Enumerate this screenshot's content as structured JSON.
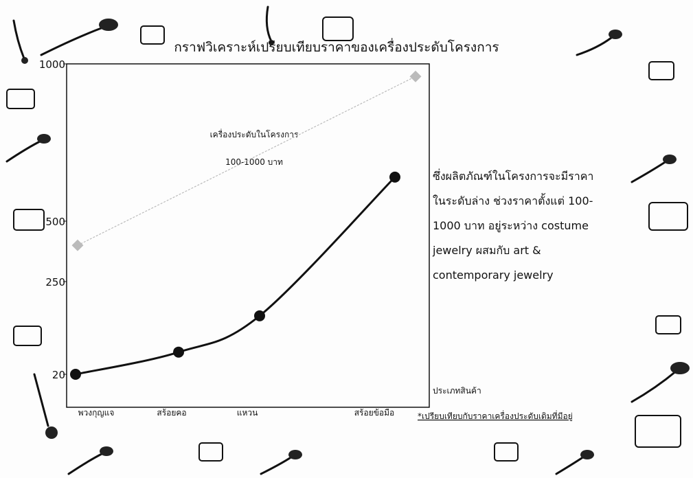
{
  "chart_data": {
    "type": "line",
    "title": "กราฟวิเคราะห์เปรียบเทียบราคาของเครื่องประดับโครงการ",
    "categories": [
      "พวงกุญแจ",
      "สร้อยคอ",
      "แหวน",
      "สร้อยข้อมือ"
    ],
    "series": [
      {
        "color": "#111111",
        "values": [
          20,
          75,
          165,
          640
        ]
      }
    ],
    "range": {
      "color": "#bbbbbb",
      "values": [
        400,
        960
      ]
    },
    "ylim": [
      20,
      1000
    ],
    "yticks": [
      20,
      250,
      500,
      1000
    ],
    "x_label": "ประเภทสินค้า",
    "annotation": [
      "เครื่องประดับในโครงการ",
      "100-1000 บาท"
    ],
    "description": [
      "ซึ่งผลิตภัณฑ์ในโครงการจะมีราคา",
      "ในระดับล่าง ช่วงราคาตั้งแต่ 100-",
      "1000 บาท อยู่ระหว่าง costume",
      "jewelry ผสมกับ art &",
      "contemporary jewelry"
    ],
    "footnote": "*เปรียบเทียบกับราคาเครื่องประดับเดิมที่มีอยู่"
  }
}
